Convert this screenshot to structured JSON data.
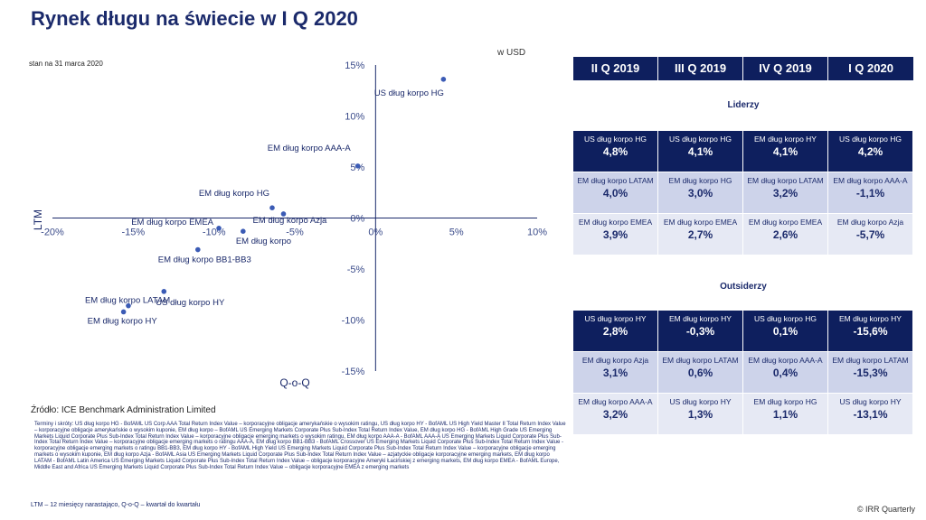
{
  "title": "Rynek długu na świecie w I Q 2020",
  "date_note": "stan na 31 marca 2020",
  "unit_note": "w USD",
  "chart_data": {
    "type": "scatter",
    "title": "",
    "xlabel": "Q-o-Q",
    "ylabel": "LTM",
    "xlim": [
      -20,
      10
    ],
    "ylim": [
      -15,
      15
    ],
    "x_ticks": [
      "-20%",
      "-15%",
      "-10%",
      "-5%",
      "0%",
      "5%",
      "10%"
    ],
    "y_ticks": [
      "15%",
      "10%",
      "5%",
      "0%",
      "-5%",
      "-10%",
      "-15%"
    ],
    "grid": false,
    "points": [
      {
        "label": "US dług korpo HG",
        "x": 4.2,
        "y": 13.6
      },
      {
        "label": "EM dług korpo AAA-A",
        "x": -1.1,
        "y": 5.1
      },
      {
        "label": "EM dług korpo HG",
        "x": -6.4,
        "y": 1.0
      },
      {
        "label": "EM dług korpo Azja",
        "x": -5.7,
        "y": 0.4
      },
      {
        "label": "EM dług korpo EMEA",
        "x": -9.7,
        "y": -1.0
      },
      {
        "label": "EM dług korpo",
        "x": -8.2,
        "y": -1.3
      },
      {
        "label": "EM dług korpo BB1-BB3",
        "x": -11.0,
        "y": -3.1
      },
      {
        "label": "US dług korpo HY",
        "x": -13.1,
        "y": -7.2
      },
      {
        "label": "EM dług korpo LATAM",
        "x": -15.3,
        "y": -8.6
      },
      {
        "label": "EM dług korpo HY",
        "x": -15.6,
        "y": -9.2
      }
    ]
  },
  "source": "Źródło: ICE Benchmark Administration Limited",
  "terms": "Terminy i skróty: US dług korpo HG - BofAML US Corp AAA Total Return Index Value – korporacyjne obligacje amerykańskie o wysokim ratingu, US dług korpo HY - BofAML US High Yield Master II Total Return Index Value – korporacyjne obligacje amerykańskie o wysokim kuponie, EM dług korpo – BofAML US Emerging Markets Corporate Plus Sub-Index Total Return Index Value, EM dług korpo HG - BofAML High Grade US Emerging Markets Liquid Corporate Plus Sub-Index Total Return Index Value – korporacyjne obligacje emerging markets o wysokim ratingu, EM dług korpo AAA-A - BofAML AAA-A US Emerging Markets Liquid Corporate Plus Sub-Index Total Return Index Value – korporacyjne obligacje emerging markets o ratingu AAA-A, EM dług korpo BB1-BB3 - BofAML Crossover US Emerging Markets Liquid Corporate Plus Sub-Index Total Return Index Value - korporacyjne obligacje emerging markets o ratingu BB1-BB3, EM dług korpo HY - BofAML High Yield US Emerging Markets Liquid Corporate Plus Sub-Index Total Return Index Value – korporacyjne obligacje emerging markets o wysokim kuponie, EM dług korpo Azja - BofAML Asia US Emerging Markets Liquid Corporate Plus Sub-Index Total Return Index Value – azjatyckie obligacje korporacyjne emerging markets, EM dług korpo LATAM - BofAML Latin America US Emerging Markets Liquid Corporate Plus Sub-Index Total Return Index Value – obligacje korporacyjne Ameryki Łacińskiej z emerging markets, EM dług korpo EMEA - BofAML Europe, Middle East and Africa US Emerging Markets Liquid Corporate Plus Sub-Index Total Return Index Value – obligacje korporacyjne EMEA z emerging markets",
  "ltm_note": "LTM – 12 miesięcy narastająco, Q-o-Q – kwartał do kwartału",
  "copyright": "© IRR Quarterly",
  "table": {
    "headers": [
      "II Q 2019",
      "III Q 2019",
      "IV Q 2019",
      "I Q 2020"
    ],
    "leaders_title": "Liderzy",
    "outsiders_title": "Outsiderzy",
    "leaders": [
      [
        {
          "name": "US dług korpo HG",
          "value": "4,8%"
        },
        {
          "name": "US dług korpo HG",
          "value": "4,1%"
        },
        {
          "name": "EM dług korpo HY",
          "value": "4,1%"
        },
        {
          "name": "US dług korpo HG",
          "value": "4,2%"
        }
      ],
      [
        {
          "name": "EM dług korpo LATAM",
          "value": "4,0%"
        },
        {
          "name": "EM dług korpo HG",
          "value": "3,0%"
        },
        {
          "name": "EM dług korpo LATAM",
          "value": "3,2%"
        },
        {
          "name": "EM dług korpo AAA-A",
          "value": "-1,1%"
        }
      ],
      [
        {
          "name": "EM dług korpo EMEA",
          "value": "3,9%"
        },
        {
          "name": "EM dług korpo EMEA",
          "value": "2,7%"
        },
        {
          "name": "EM dług korpo EMEA",
          "value": "2,6%"
        },
        {
          "name": "EM dług korpo Azja",
          "value": "-5,7%"
        }
      ]
    ],
    "outsiders": [
      [
        {
          "name": "US dług korpo HY",
          "value": "2,8%"
        },
        {
          "name": "EM dług korpo HY",
          "value": "-0,3%"
        },
        {
          "name": "US dług korpo HG",
          "value": "0,1%"
        },
        {
          "name": "EM dług korpo HY",
          "value": "-15,6%"
        }
      ],
      [
        {
          "name": "EM dług korpo Azja",
          "value": "3,1%"
        },
        {
          "name": "EM dług korpo LATAM",
          "value": "0,6%"
        },
        {
          "name": "EM dług korpo AAA-A",
          "value": "0,4%"
        },
        {
          "name": "EM dług korpo LATAM",
          "value": "-15,3%"
        }
      ],
      [
        {
          "name": "EM dług korpo AAA-A",
          "value": "3,2%"
        },
        {
          "name": "US dług korpo HY",
          "value": "1,3%"
        },
        {
          "name": "EM dług korpo HG",
          "value": "1,1%"
        },
        {
          "name": "US dług korpo HY",
          "value": "-13,1%"
        }
      ]
    ]
  }
}
